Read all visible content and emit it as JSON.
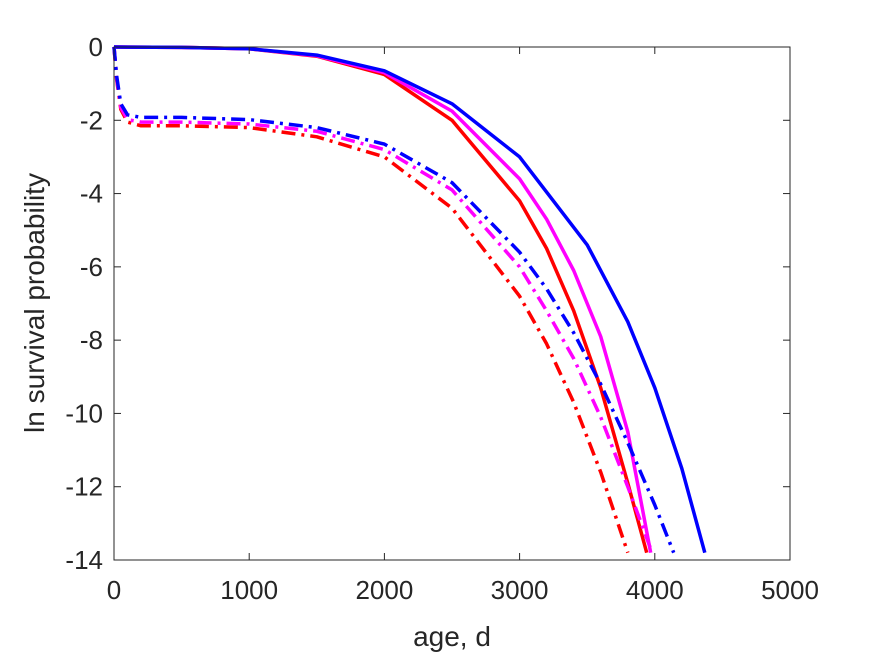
{
  "chart_data": {
    "type": "line",
    "xlabel": "age, d",
    "ylabel": "ln survival probability",
    "xlim": [
      0,
      5000
    ],
    "ylim": [
      -14,
      0
    ],
    "xticks": [
      "0",
      "1000",
      "2000",
      "3000",
      "4000",
      "5000"
    ],
    "yticks": [
      "0",
      "-2",
      "-4",
      "-6",
      "-8",
      "-10",
      "-12",
      "-14"
    ],
    "grid": false,
    "legend": "none",
    "series": [
      {
        "color": "#ff0000",
        "style": "solid",
        "x": [
          0,
          500,
          1000,
          1500,
          2000,
          2500,
          3000,
          3200,
          3400,
          3600,
          3800,
          3940
        ],
        "y": [
          0,
          -0.01,
          -0.05,
          -0.25,
          -0.75,
          -2.0,
          -4.2,
          -5.5,
          -7.2,
          -9.3,
          -11.9,
          -13.8
        ]
      },
      {
        "color": "#ff00ff",
        "style": "solid",
        "x": [
          0,
          500,
          1000,
          1500,
          2000,
          2500,
          3000,
          3200,
          3400,
          3600,
          3800,
          3970
        ],
        "y": [
          0,
          -0.01,
          -0.05,
          -0.24,
          -0.7,
          -1.75,
          -3.6,
          -4.7,
          -6.1,
          -7.9,
          -10.5,
          -13.8
        ]
      },
      {
        "color": "#0000ff",
        "style": "solid",
        "x": [
          0,
          500,
          1000,
          1500,
          2000,
          2500,
          3000,
          3500,
          3800,
          4000,
          4200,
          4370
        ],
        "y": [
          0,
          -0.01,
          -0.05,
          -0.22,
          -0.65,
          -1.55,
          -3.0,
          -5.4,
          -7.5,
          -9.3,
          -11.5,
          -13.8
        ]
      },
      {
        "color": "#ff0000",
        "style": "dashdot",
        "x": [
          0,
          20,
          50,
          100,
          200,
          500,
          1000,
          1500,
          2000,
          2500,
          3000,
          3200,
          3400,
          3600,
          3800
        ],
        "y": [
          0,
          -0.9,
          -1.7,
          -2.05,
          -2.15,
          -2.15,
          -2.2,
          -2.45,
          -3.0,
          -4.4,
          -6.8,
          -8.1,
          -9.7,
          -11.6,
          -13.8
        ]
      },
      {
        "color": "#ff00ff",
        "style": "dashdot",
        "x": [
          0,
          20,
          50,
          100,
          200,
          500,
          1000,
          1500,
          2000,
          2500,
          3000,
          3200,
          3400,
          3600,
          3800,
          3980
        ],
        "y": [
          0,
          -0.85,
          -1.65,
          -1.98,
          -2.05,
          -2.05,
          -2.1,
          -2.3,
          -2.8,
          -3.9,
          -6.0,
          -7.2,
          -8.5,
          -10.1,
          -12.0,
          -13.8
        ]
      },
      {
        "color": "#0000ff",
        "style": "dashdot",
        "x": [
          0,
          20,
          50,
          100,
          200,
          500,
          1000,
          1500,
          2000,
          2500,
          3000,
          3200,
          3400,
          3600,
          3800,
          4000,
          4140
        ],
        "y": [
          0,
          -0.8,
          -1.55,
          -1.85,
          -1.92,
          -1.92,
          -1.98,
          -2.2,
          -2.65,
          -3.7,
          -5.6,
          -6.6,
          -7.8,
          -9.2,
          -10.8,
          -12.5,
          -13.8
        ]
      }
    ]
  }
}
